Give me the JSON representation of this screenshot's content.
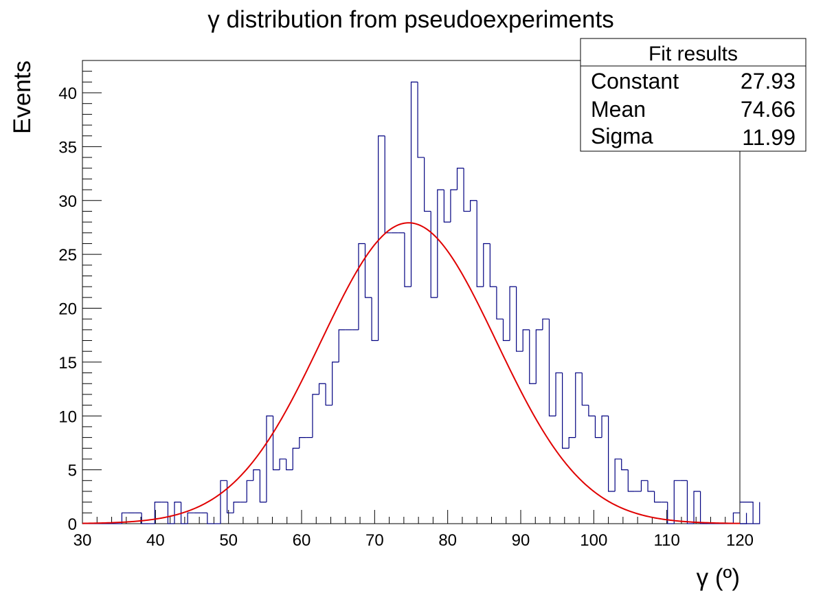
{
  "chart_data": {
    "type": "histogram",
    "title": "γ distribution from pseudoexperiments",
    "xlabel": "γ (º)",
    "ylabel": "Events",
    "xlim": [
      30,
      120
    ],
    "ylim": [
      0,
      43
    ],
    "x_ticks": [
      30,
      40,
      50,
      60,
      70,
      80,
      90,
      100,
      110,
      120
    ],
    "y_ticks": [
      0,
      5,
      10,
      15,
      20,
      25,
      30,
      35,
      40
    ],
    "grid": false,
    "bin_start": 30,
    "bin_width": 0.9,
    "bin_counts": [
      0,
      0,
      0,
      0,
      0,
      0,
      1,
      1,
      1,
      0,
      0,
      2,
      2,
      0,
      2,
      0,
      1,
      1,
      1,
      0,
      0,
      4,
      1,
      2,
      2,
      4,
      5,
      2,
      10,
      5,
      6,
      5,
      7,
      8,
      8,
      12,
      13,
      11,
      15,
      18,
      18,
      18,
      26,
      21,
      17,
      36,
      27,
      27,
      27,
      22,
      41,
      34,
      29,
      21,
      31,
      28,
      31,
      33,
      29,
      30,
      22,
      26,
      22,
      19,
      17,
      22,
      16,
      18,
      13,
      18,
      19,
      10,
      14,
      7,
      8,
      14,
      11,
      10,
      8,
      10,
      3,
      6,
      5,
      3,
      3,
      4,
      3,
      2,
      2,
      0,
      4,
      4,
      0,
      3,
      0,
      0,
      0,
      0,
      0,
      1,
      1,
      0,
      2,
      0
    ],
    "series": [
      {
        "kind": "histogram",
        "color": "#000080"
      },
      {
        "kind": "gaussian-fit",
        "color": "#e00000",
        "constant": 27.93,
        "mean": 74.66,
        "sigma": 11.99
      }
    ],
    "stats_box": {
      "title": "Fit results",
      "rows": [
        {
          "label": "Constant",
          "value": "27.93"
        },
        {
          "label": "Mean",
          "value": "74.66"
        },
        {
          "label": "Sigma",
          "value": "11.99"
        }
      ],
      "placement": "top-right"
    }
  }
}
